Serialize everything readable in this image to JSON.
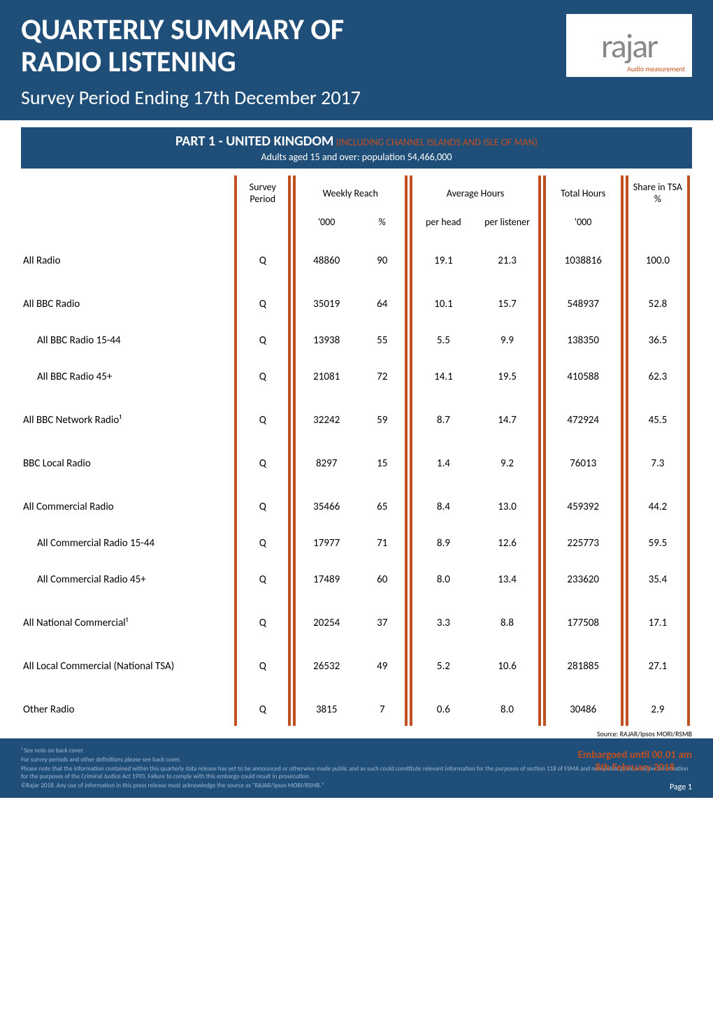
{
  "header": {
    "title_line1": "QUARTERLY SUMMARY OF",
    "title_line2": "RADIO LISTENING",
    "subtitle": "Survey Period Ending 17th December 2017",
    "logo_text": "rajar",
    "logo_subtext": "Audio measurement"
  },
  "section": {
    "title_prefix": "PART 1 - UNITED KINGDOM",
    "title_suffix": " (INCLUDING CHANNEL ISLANDS AND ISLE OF MAN)",
    "subtitle": "Adults aged 15 and over: population 54,466,000"
  },
  "table": {
    "headers": {
      "survey_period": "Survey Period",
      "weekly_reach": "Weekly Reach",
      "reach_000": "'000",
      "reach_pct": "%",
      "avg_hours": "Average Hours",
      "per_head": "per head",
      "per_listener": "per listener",
      "total_hours": "Total Hours",
      "total_000": "'000",
      "share": "Share in TSA %"
    },
    "rows": [
      {
        "label": "All Radio",
        "indent": false,
        "gap": "big",
        "period": "Q",
        "reach_000": "48860",
        "reach_pct": "90",
        "per_head": "19.1",
        "per_listener": "21.3",
        "total": "1038816",
        "share": "100.0"
      },
      {
        "label": "All BBC Radio",
        "indent": false,
        "gap": "big",
        "period": "Q",
        "reach_000": "35019",
        "reach_pct": "64",
        "per_head": "10.1",
        "per_listener": "15.7",
        "total": "548937",
        "share": "52.8"
      },
      {
        "label": "All BBC Radio 15-44",
        "indent": true,
        "gap": "med",
        "period": "Q",
        "reach_000": "13938",
        "reach_pct": "55",
        "per_head": "5.5",
        "per_listener": "9.9",
        "total": "138350",
        "share": "36.5"
      },
      {
        "label": "All BBC Radio 45+",
        "indent": true,
        "gap": "med",
        "period": "Q",
        "reach_000": "21081",
        "reach_pct": "72",
        "per_head": "14.1",
        "per_listener": "19.5",
        "total": "410588",
        "share": "62.3"
      },
      {
        "label": "All BBC Network Radio¹",
        "indent": false,
        "gap": "big",
        "period": "Q",
        "reach_000": "32242",
        "reach_pct": "59",
        "per_head": "8.7",
        "per_listener": "14.7",
        "total": "472924",
        "share": "45.5"
      },
      {
        "label": "BBC Local Radio",
        "indent": false,
        "gap": "big",
        "period": "Q",
        "reach_000": "8297",
        "reach_pct": "15",
        "per_head": "1.4",
        "per_listener": "9.2",
        "total": "76013",
        "share": "7.3"
      },
      {
        "label": "All Commercial Radio",
        "indent": false,
        "gap": "big",
        "period": "Q",
        "reach_000": "35466",
        "reach_pct": "65",
        "per_head": "8.4",
        "per_listener": "13.0",
        "total": "459392",
        "share": "44.2"
      },
      {
        "label": "All Commercial Radio 15-44",
        "indent": true,
        "gap": "med",
        "period": "Q",
        "reach_000": "17977",
        "reach_pct": "71",
        "per_head": "8.9",
        "per_listener": "12.6",
        "total": "225773",
        "share": "59.5"
      },
      {
        "label": "All Commercial Radio 45+",
        "indent": true,
        "gap": "med",
        "period": "Q",
        "reach_000": "17489",
        "reach_pct": "60",
        "per_head": "8.0",
        "per_listener": "13.4",
        "total": "233620",
        "share": "35.4"
      },
      {
        "label": "All National Commercial¹",
        "indent": false,
        "gap": "big",
        "period": "Q",
        "reach_000": "20254",
        "reach_pct": "37",
        "per_head": "3.3",
        "per_listener": "8.8",
        "total": "177508",
        "share": "17.1"
      },
      {
        "label": "All Local Commercial (National TSA)",
        "indent": false,
        "gap": "big",
        "period": "Q",
        "reach_000": "26532",
        "reach_pct": "49",
        "per_head": "5.2",
        "per_listener": "10.6",
        "total": "281885",
        "share": "27.1"
      },
      {
        "label": "Other Radio",
        "indent": false,
        "gap": "big",
        "period": "Q",
        "reach_000": "3815",
        "reach_pct": "7",
        "per_head": "0.6",
        "per_listener": "8.0",
        "total": "30486",
        "share": "2.9"
      }
    ]
  },
  "source_note": "Source: RAJAR/Ipsos MORI/RSMB",
  "footnotes": {
    "line1": "¹ See note on back cover.",
    "line2": "For survey periods and other definitions please see back cover.",
    "line3": "Please note that the information contained within this quarterly data release has yet to be announced or otherwise made public and as such could constitute relevant information for the purposes of section 118 of FSMA and non-public price sensitive information for the purposes of the Criminal Justice Act 1993. Failure to comply with this embargo could result in prosecution.",
    "line4": "©Rajar 2018. Any use of information in this press release must acknowledge the source as \"RAJAR/Ipsos MORI/RSMB.\"",
    "embargo_line1": "Embargoed until 00.01 am",
    "embargo_line2": "8th February 2018",
    "page": "Page 1"
  },
  "colors": {
    "header_bg": "#1f4e79",
    "accent": "#c05020",
    "text_light": "#ffffff",
    "footnote_text": "#a0b8d0"
  }
}
